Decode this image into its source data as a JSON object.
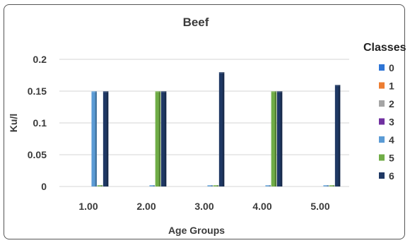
{
  "chart_data": {
    "type": "bar",
    "title": "Beef",
    "xlabel": "Age Groups",
    "ylabel": "Ku/l",
    "ylim": [
      0,
      0.2
    ],
    "yticks": [
      0,
      0.05,
      0.1,
      0.15,
      0.2
    ],
    "ytick_labels": [
      "0",
      "0.05",
      "0.1",
      "0.15",
      "0.2"
    ],
    "grid": true,
    "legend_title": "Classes",
    "legend_position": "right",
    "categories": [
      "1.00",
      "2.00",
      "3.00",
      "4.00",
      "5.00"
    ],
    "series": [
      {
        "name": "0",
        "color": "#2e75d6",
        "values": [
          0,
          0,
          0,
          0,
          0
        ]
      },
      {
        "name": "1",
        "color": "#ed7d31",
        "values": [
          0,
          0,
          0,
          0,
          0
        ]
      },
      {
        "name": "2",
        "color": "#a5a5a5",
        "values": [
          0,
          0,
          0,
          0,
          0
        ]
      },
      {
        "name": "3",
        "color": "#7030a0",
        "values": [
          0,
          0,
          0,
          0,
          0
        ]
      },
      {
        "name": "4",
        "color": "#5b9bd5",
        "values": [
          0.15,
          0.001,
          0.001,
          0.001,
          0.001
        ]
      },
      {
        "name": "5",
        "color": "#70ad47",
        "values": [
          0.001,
          0.15,
          0.001,
          0.15,
          0.001
        ]
      },
      {
        "name": "6",
        "color": "#1f3864",
        "values": [
          0.15,
          0.15,
          0.18,
          0.15,
          0.16
        ]
      }
    ]
  }
}
